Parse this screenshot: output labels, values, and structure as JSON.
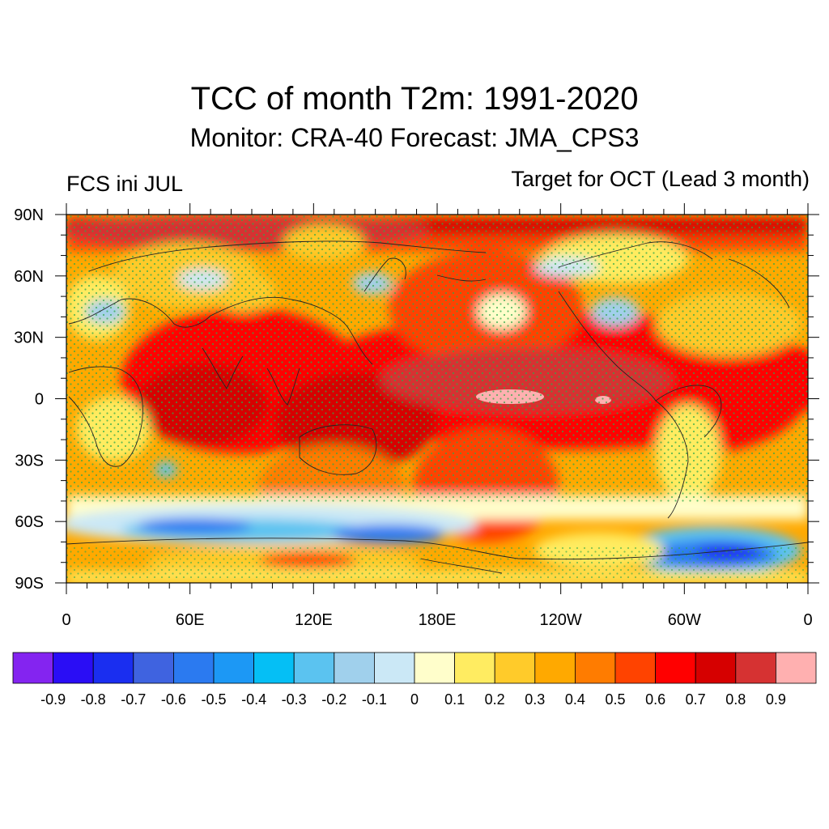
{
  "title": "TCC of month T2m: 1991-2020",
  "subtitle": "Monitor: CRA-40   Forecast: JMA_CPS3",
  "left_label": "FCS ini JUL",
  "right_label": "Target for OCT (Lead 3 month)",
  "lat_labels": [
    "90N",
    "60N",
    "30N",
    "0",
    "30S",
    "60S",
    "90S"
  ],
  "lat_values": [
    90,
    60,
    30,
    0,
    -30,
    -60,
    -90
  ],
  "lon_labels": [
    "0",
    "60E",
    "120E",
    "180E",
    "120W",
    "60W",
    "0"
  ],
  "lon_values": [
    0,
    60,
    120,
    180,
    240,
    300,
    360
  ],
  "legend": {
    "colors": [
      "#8424f0",
      "#2a0df5",
      "#1a2ef0",
      "#3f63e0",
      "#2b7af0",
      "#1c98f5",
      "#05bff5",
      "#5bc3f0",
      "#a0d0ec",
      "#cbe8f6",
      "#fffecb",
      "#ffec61",
      "#ffcb2a",
      "#ffa900",
      "#ff7c00",
      "#ff4300",
      "#ff0000",
      "#d60000",
      "#d63232",
      "#ffb0b0"
    ],
    "labels": [
      "-0.9",
      "-0.8",
      "-0.7",
      "-0.6",
      "-0.5",
      "-0.4",
      "-0.3",
      "-0.2",
      "-0.1",
      "0",
      "0.1",
      "0.2",
      "0.3",
      "0.4",
      "0.5",
      "0.6",
      "0.7",
      "0.8",
      "0.9"
    ]
  },
  "stipple_color": "#2ea84a",
  "significant_color": "#b06a62"
}
